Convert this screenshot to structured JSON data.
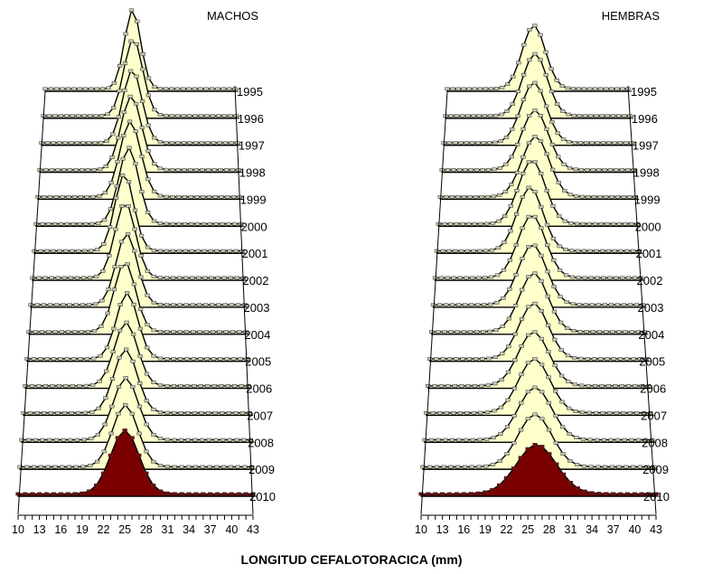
{
  "chart_data": [
    {
      "type": "area",
      "title": "MACHOS",
      "x": [
        10,
        11,
        12,
        13,
        14,
        15,
        16,
        17,
        18,
        19,
        20,
        21,
        22,
        23,
        24,
        25,
        26,
        27,
        28,
        29,
        30,
        31,
        32,
        33,
        34,
        35,
        36,
        37,
        38,
        39,
        40,
        41,
        42,
        43
      ],
      "x_ticks": [
        "10",
        "13",
        "16",
        "19",
        "22",
        "25",
        "28",
        "31",
        "34",
        "37",
        "40",
        "43"
      ],
      "colors": {
        "fill": "#ffffcc",
        "fill_last": "#7a0000",
        "marker": "#c8c8b4",
        "marker_last": "#7a0000",
        "line": "#000000"
      },
      "series": [
        {
          "name": "1995",
          "peak": 25.2,
          "width": 1.4,
          "height": 1.0,
          "tail": 0.03
        },
        {
          "name": "1996",
          "peak": 25.4,
          "width": 1.6,
          "height": 0.97,
          "tail": 0.03
        },
        {
          "name": "1997",
          "peak": 25.3,
          "width": 1.6,
          "height": 0.92,
          "tail": 0.03
        },
        {
          "name": "1998",
          "peak": 25.2,
          "width": 1.7,
          "height": 0.93,
          "tail": 0.03
        },
        {
          "name": "1999",
          "peak": 25.1,
          "width": 1.7,
          "height": 0.95,
          "tail": 0.03
        },
        {
          "name": "2000",
          "peak": 24.9,
          "width": 1.6,
          "height": 0.96,
          "tail": 0.03
        },
        {
          "name": "2001",
          "peak": 24.3,
          "width": 1.5,
          "height": 0.97,
          "tail": 0.03
        },
        {
          "name": "2002",
          "peak": 24.5,
          "width": 1.6,
          "height": 0.95,
          "tail": 0.03
        },
        {
          "name": "2003",
          "peak": 24.8,
          "width": 1.6,
          "height": 0.9,
          "tail": 0.03
        },
        {
          "name": "2004",
          "peak": 24.6,
          "width": 1.6,
          "height": 0.88,
          "tail": 0.03
        },
        {
          "name": "2005",
          "peak": 25.0,
          "width": 1.6,
          "height": 0.83,
          "tail": 0.03
        },
        {
          "name": "2006",
          "peak": 24.9,
          "width": 1.7,
          "height": 0.8,
          "tail": 0.03
        },
        {
          "name": "2007",
          "peak": 24.9,
          "width": 1.7,
          "height": 0.8,
          "tail": 0.03
        },
        {
          "name": "2008",
          "peak": 25.0,
          "width": 1.8,
          "height": 0.78,
          "tail": 0.03
        },
        {
          "name": "2009",
          "peak": 25.0,
          "width": 1.8,
          "height": 0.78,
          "tail": 0.03
        },
        {
          "name": "2010",
          "peak": 25.0,
          "width": 2.0,
          "height": 0.8,
          "tail": 0.03
        }
      ]
    },
    {
      "type": "area",
      "title": "HEMBRAS",
      "x": [
        10,
        11,
        12,
        13,
        14,
        15,
        16,
        17,
        18,
        19,
        20,
        21,
        22,
        23,
        24,
        25,
        26,
        27,
        28,
        29,
        30,
        31,
        32,
        33,
        34,
        35,
        36,
        37,
        38,
        39,
        40,
        41,
        42,
        43
      ],
      "x_ticks": [
        "10",
        "13",
        "16",
        "19",
        "22",
        "25",
        "28",
        "31",
        "34",
        "37",
        "40",
        "43"
      ],
      "colors": {
        "fill": "#ffffcc",
        "fill_last": "#7a0000",
        "marker": "#c8c8b4",
        "marker_last": "#7a0000",
        "line": "#000000"
      },
      "series": [
        {
          "name": "1995",
          "peak": 25.8,
          "width": 2.1,
          "height": 0.8,
          "tail": 0.03
        },
        {
          "name": "1996",
          "peak": 26.0,
          "width": 2.2,
          "height": 0.78,
          "tail": 0.03
        },
        {
          "name": "1997",
          "peak": 25.8,
          "width": 2.2,
          "height": 0.76,
          "tail": 0.03
        },
        {
          "name": "1998",
          "peak": 26.0,
          "width": 2.3,
          "height": 0.75,
          "tail": 0.03
        },
        {
          "name": "1999",
          "peak": 26.1,
          "width": 2.3,
          "height": 0.76,
          "tail": 0.03
        },
        {
          "name": "2000",
          "peak": 25.5,
          "width": 2.2,
          "height": 0.8,
          "tail": 0.03
        },
        {
          "name": "2001",
          "peak": 25.2,
          "width": 2.1,
          "height": 0.8,
          "tail": 0.03
        },
        {
          "name": "2002",
          "peak": 25.5,
          "width": 2.2,
          "height": 0.79,
          "tail": 0.03
        },
        {
          "name": "2003",
          "peak": 25.6,
          "width": 2.2,
          "height": 0.76,
          "tail": 0.03
        },
        {
          "name": "2004",
          "peak": 25.8,
          "width": 2.2,
          "height": 0.74,
          "tail": 0.03
        },
        {
          "name": "2005",
          "peak": 25.8,
          "width": 2.2,
          "height": 0.7,
          "tail": 0.03
        },
        {
          "name": "2006",
          "peak": 25.8,
          "width": 2.3,
          "height": 0.68,
          "tail": 0.03
        },
        {
          "name": "2007",
          "peak": 25.9,
          "width": 2.3,
          "height": 0.68,
          "tail": 0.03
        },
        {
          "name": "2008",
          "peak": 26.0,
          "width": 2.4,
          "height": 0.66,
          "tail": 0.03
        },
        {
          "name": "2009",
          "peak": 26.0,
          "width": 2.4,
          "height": 0.66,
          "tail": 0.03
        },
        {
          "name": "2010",
          "peak": 26.2,
          "width": 2.8,
          "height": 0.62,
          "tail": 0.03
        }
      ]
    }
  ],
  "xlabel": "LONGITUD CEFALOTORACICA (mm)"
}
